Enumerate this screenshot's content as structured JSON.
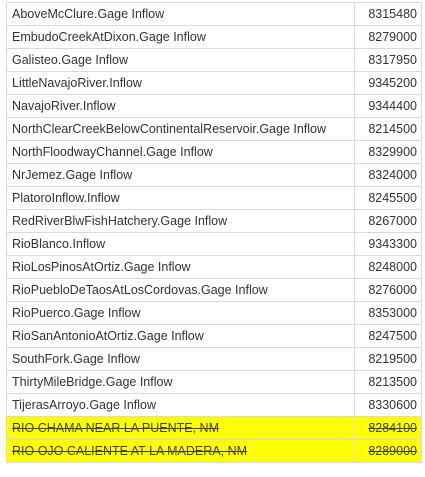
{
  "table": {
    "rows": [
      {
        "name": "AboveMcClure.Gage Inflow",
        "code": "8315480",
        "struck": false
      },
      {
        "name": "EmbudoCreekAtDixon.Gage Inflow",
        "code": "8279000",
        "struck": false
      },
      {
        "name": "Galisteo.Gage Inflow",
        "code": "8317950",
        "struck": false
      },
      {
        "name": "LittleNavajoRiver.Inflow",
        "code": "9345200",
        "struck": false
      },
      {
        "name": "NavajoRiver.Inflow",
        "code": "9344400",
        "struck": false
      },
      {
        "name": "NorthClearCreekBelowContinentalReservoir.Gage Inflow",
        "code": "8214500",
        "struck": false
      },
      {
        "name": "NorthFloodwayChannel.Gage Inflow",
        "code": "8329900",
        "struck": false
      },
      {
        "name": "NrJemez.Gage Inflow",
        "code": "8324000",
        "struck": false
      },
      {
        "name": "PlatoroInflow.Inflow",
        "code": "8245500",
        "struck": false
      },
      {
        "name": "RedRiverBlwFishHatchery.Gage Inflow",
        "code": "8267000",
        "struck": false
      },
      {
        "name": "RioBlanco.Inflow",
        "code": "9343300",
        "struck": false
      },
      {
        "name": "RioLosPinosAtOrtiz.Gage Inflow",
        "code": "8248000",
        "struck": false
      },
      {
        "name": "RioPuebloDeTaosAtLosCordovas.Gage Inflow",
        "code": "8276000",
        "struck": false
      },
      {
        "name": "RioPuerco.Gage Inflow",
        "code": "8353000",
        "struck": false
      },
      {
        "name": "RioSanAntonioAtOrtiz.Gage Inflow",
        "code": "8247500",
        "struck": false
      },
      {
        "name": "SouthFork.Gage Inflow",
        "code": "8219500",
        "struck": false
      },
      {
        "name": "ThirtyMileBridge.Gage Inflow",
        "code": "8213500",
        "struck": false
      },
      {
        "name": "TijerasArroyo.Gage Inflow",
        "code": "8330600",
        "struck": false
      },
      {
        "name": "RIO CHAMA NEAR LA PUENTE, NM",
        "code": "8284100",
        "struck": true
      },
      {
        "name": "RIO OJO CALIENTE AT LA MADERA, NM",
        "code": "8289000",
        "struck": true
      }
    ]
  },
  "colors": {
    "highlight": "#ffff00",
    "border": "#d9d9d9",
    "text": "#333333"
  }
}
